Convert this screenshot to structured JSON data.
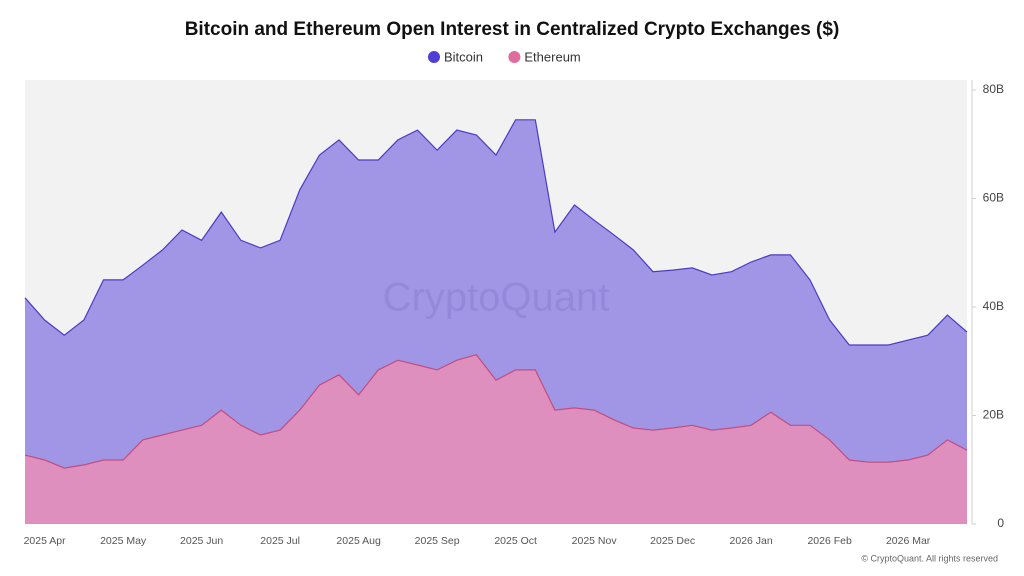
{
  "chart_data": {
    "type": "area",
    "title": "Bitcoin and Ethereum Open Interest in Centralized Crypto Exchanges ($)",
    "watermark": "CryptoQuant",
    "footer": "© CryptoQuant. All rights reserved",
    "categories": [
      null,
      "2025 Apr",
      null,
      null,
      null,
      "2025 May",
      null,
      null,
      null,
      "2025 Jun",
      null,
      null,
      null,
      "2025 Jul",
      null,
      null,
      null,
      "2025 Aug",
      null,
      null,
      null,
      "2025 Sep",
      null,
      null,
      null,
      "2025 Oct",
      null,
      null,
      null,
      "2025 Nov",
      null,
      null,
      null,
      "2025 Dec",
      null,
      null,
      null,
      "2026 Jan",
      null,
      null,
      null,
      "2026 Feb",
      null,
      null,
      null,
      "2026 Mar",
      null,
      null,
      null
    ],
    "series": [
      {
        "name": "Bitcoin",
        "color": "#4f3fd6",
        "fill": "#a196e6",
        "stroke": "#4a3cc4",
        "values": [
          41.7,
          37.6,
          34.8,
          37.6,
          45,
          45,
          47.7,
          50.5,
          54.2,
          52.3,
          57.5,
          52.3,
          50.9,
          52.3,
          61.6,
          68,
          70.8,
          67.1,
          67.1,
          70.8,
          72.6,
          68.9,
          72.6,
          71.7,
          68,
          74.5,
          74.5,
          53.8,
          58.8,
          56,
          53.3,
          50.5,
          46.5,
          46.8,
          47.2,
          45.9,
          46.5,
          48.3,
          49.6,
          49.6,
          45,
          37.6,
          33,
          33,
          33,
          33.9,
          34.8,
          38.5,
          35.4
        ]
      },
      {
        "name": "Ethereum",
        "color": "#e06c9f",
        "fill": "#de8fbd",
        "stroke": "#c24d7e",
        "values": [
          12.7,
          11.8,
          10.3,
          10.9,
          11.8,
          11.8,
          15.5,
          16.4,
          17.3,
          18.2,
          21,
          18.2,
          16.4,
          17.3,
          21,
          25.6,
          27.5,
          23.8,
          28.4,
          30.2,
          29.3,
          28.4,
          30.2,
          31.2,
          26.5,
          28.4,
          28.4,
          21,
          21.4,
          21,
          19.2,
          17.7,
          17.3,
          17.7,
          18.2,
          17.3,
          17.7,
          18.2,
          20.6,
          18.2,
          18.2,
          15.5,
          11.8,
          11.4,
          11.4,
          11.8,
          12.7,
          15.5,
          13.6
        ]
      }
    ],
    "ylim": [
      0,
      80
    ],
    "yticks": [
      0,
      {
        "value": 20,
        "label": "20B"
      },
      {
        "value": 40,
        "label": "40B"
      },
      {
        "value": 60,
        "label": "60B"
      },
      {
        "value": 80,
        "label": "80B"
      }
    ],
    "grid": false,
    "legend": "top"
  }
}
